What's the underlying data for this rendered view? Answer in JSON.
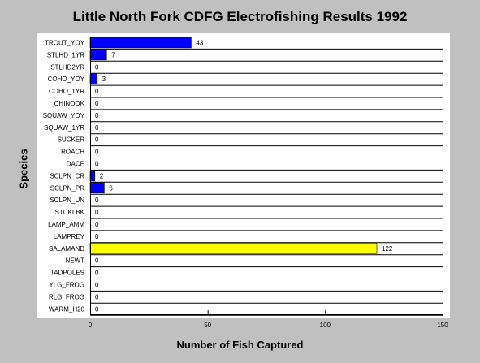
{
  "chart_data": {
    "type": "bar",
    "orientation": "horizontal",
    "title": "Little North Fork CDFG Electrofishing Results 1992",
    "xlabel": "Number of Fish Captured",
    "ylabel": "Species",
    "xlim": [
      0,
      150
    ],
    "xticks": [
      0,
      50,
      100,
      150
    ],
    "categories": [
      "TROUT_YOY",
      "STLHD_1YR",
      "STLHD2YR",
      "COHO_YOY",
      "COHO_1YR",
      "CHINOOK",
      "SQUAW_YOY",
      "SQUAW_1YR",
      "SUCKER",
      "ROACH",
      "DACE",
      "SCLPN_CR",
      "SCLPN_PR",
      "SCLPN_UN",
      "STCKLBK",
      "LAMP_AMM",
      "LAMPREY",
      "SALAMAND",
      "NEWT",
      "TADPOLES",
      "YLG_FROG",
      "RLG_FROG",
      "WARM_H20"
    ],
    "values": [
      43,
      7,
      0,
      3,
      0,
      0,
      0,
      0,
      0,
      0,
      0,
      2,
      6,
      0,
      0,
      0,
      0,
      122,
      0,
      0,
      0,
      0,
      0
    ],
    "bar_color": "#0000ff",
    "highlight_color": "#ffff00",
    "highlight_category": "SALAMAND",
    "grid": "horizontal-lines"
  }
}
